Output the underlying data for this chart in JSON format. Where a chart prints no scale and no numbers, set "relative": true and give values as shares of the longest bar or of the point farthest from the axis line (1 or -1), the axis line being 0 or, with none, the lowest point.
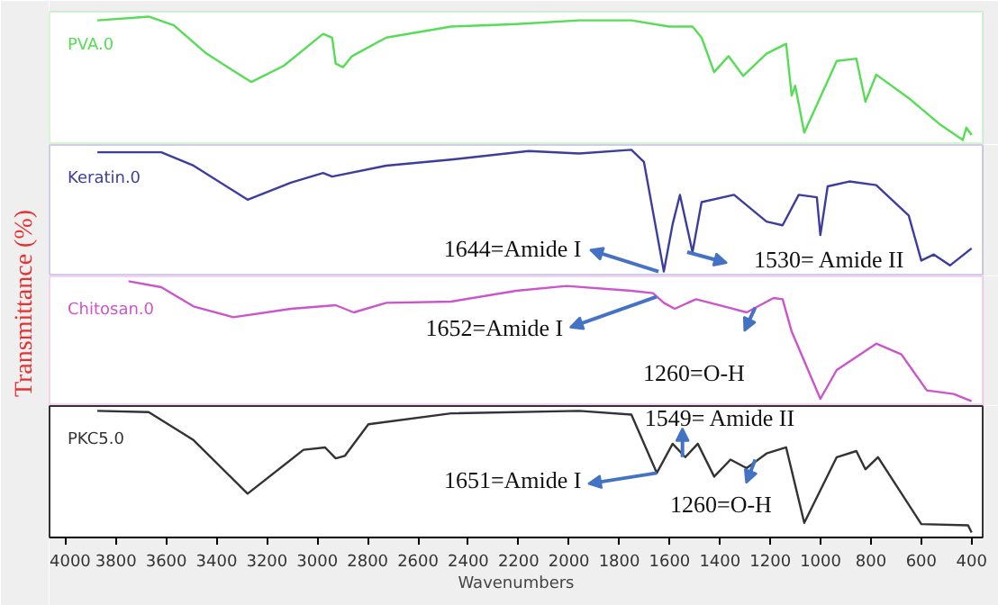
{
  "chart_data": [
    {
      "type": "line",
      "relative": true,
      "tick_labels": false,
      "xlim": [
        4064,
        356
      ],
      "x": [
        3874,
        3670,
        3570,
        3440,
        3263,
        3134,
        2977,
        2941,
        2927,
        2898,
        2862,
        2726,
        2468,
        2210,
        1960,
        1752,
        1602,
        1509,
        1473,
        1423,
        1366,
        1308,
        1215,
        1137,
        1115,
        1101,
        1065,
        936,
        858,
        822,
        779,
        650,
        528,
        435,
        421,
        400
      ],
      "series": [
        {
          "name": "PVA.0",
          "color": "#55dd55",
          "values": [
            0.97,
            1.0,
            0.93,
            0.7,
            0.47,
            0.6,
            0.86,
            0.83,
            0.62,
            0.59,
            0.68,
            0.83,
            0.92,
            0.94,
            0.97,
            0.97,
            0.92,
            0.92,
            0.83,
            0.55,
            0.68,
            0.52,
            0.7,
            0.78,
            0.36,
            0.44,
            0.06,
            0.64,
            0.66,
            0.31,
            0.53,
            0.34,
            0.13,
            0.0,
            0.1,
            0.04
          ]
        }
      ]
    },
    {
      "type": "line",
      "relative": true,
      "tick_labels": false,
      "xlim": [
        4064,
        356
      ],
      "ylabel": "Transmittance (%)",
      "x": [
        3874,
        3620,
        3492,
        3277,
        3105,
        2977,
        2941,
        2726,
        2468,
        2160,
        1960,
        1752,
        1702,
        1623,
        1588,
        1559,
        1509,
        1473,
        1344,
        1215,
        1151,
        1087,
        1015,
        1001,
        972,
        886,
        779,
        650,
        600,
        550,
        486,
        400
      ],
      "series": [
        {
          "name": "Keratin.0",
          "color": "#3d3d9e",
          "values": [
            0.98,
            0.98,
            0.87,
            0.59,
            0.73,
            0.81,
            0.78,
            0.87,
            0.92,
            0.99,
            0.97,
            1.0,
            0.9,
            0.0,
            0.39,
            0.63,
            0.16,
            0.57,
            0.63,
            0.41,
            0.38,
            0.63,
            0.61,
            0.3,
            0.7,
            0.74,
            0.71,
            0.46,
            0.09,
            0.14,
            0.05,
            0.19
          ]
        }
      ],
      "annotations": [
        {
          "text": "1644=Amide I",
          "x": 1644,
          "y": 0.0
        },
        {
          "text": "1530= Amide II",
          "x": 1530,
          "y": 0.16
        }
      ]
    },
    {
      "type": "line",
      "relative": true,
      "tick_labels": false,
      "xlim": [
        4064,
        356
      ],
      "x": [
        3750,
        3620,
        3492,
        3334,
        3105,
        2927,
        2855,
        2726,
        2468,
        2210,
        2010,
        1752,
        1666,
        1623,
        1580,
        1495,
        1366,
        1294,
        1187,
        1151,
        1115,
        1001,
        936,
        779,
        679,
        578,
        471,
        400
      ],
      "series": [
        {
          "name": "Chitosan.0",
          "color": "#cc55cc",
          "values": [
            1.0,
            0.95,
            0.79,
            0.7,
            0.77,
            0.8,
            0.74,
            0.82,
            0.83,
            0.92,
            0.96,
            0.92,
            0.9,
            0.82,
            0.77,
            0.85,
            0.78,
            0.74,
            0.86,
            0.85,
            0.58,
            0.02,
            0.26,
            0.48,
            0.39,
            0.09,
            0.06,
            0.0
          ]
        }
      ],
      "annotations": [
        {
          "text": "1652=Amide I",
          "x": 1652,
          "y": 0.87
        },
        {
          "text": "1260=O-H",
          "x": 1260,
          "y": 0.78
        }
      ]
    },
    {
      "type": "line",
      "relative": true,
      "tick_labels": "x",
      "xlim": [
        4064,
        356
      ],
      "xlabel": "Wavenumbers",
      "xticks": [
        4000,
        3800,
        3600,
        3400,
        3200,
        3000,
        2800,
        2600,
        2400,
        2200,
        2000,
        1800,
        1600,
        1400,
        1200,
        1000,
        800,
        600,
        400
      ],
      "x": [
        3874,
        3670,
        3492,
        3277,
        3055,
        2969,
        2927,
        2891,
        2797,
        2468,
        1960,
        1752,
        1651,
        1588,
        1538,
        1488,
        1423,
        1358,
        1294,
        1215,
        1137,
        1065,
        936,
        858,
        822,
        772,
        600,
        414,
        400
      ],
      "series": [
        {
          "name": "PKC5.0",
          "color": "#333333",
          "values": [
            1.0,
            0.99,
            0.76,
            0.32,
            0.68,
            0.7,
            0.61,
            0.63,
            0.89,
            0.98,
            1.0,
            0.97,
            0.49,
            0.73,
            0.62,
            0.73,
            0.46,
            0.6,
            0.53,
            0.65,
            0.7,
            0.08,
            0.62,
            0.67,
            0.52,
            0.62,
            0.07,
            0.06,
            0.0
          ]
        }
      ],
      "annotations": [
        {
          "text": "1549= Amide II",
          "x": 1549,
          "y": 0.62
        },
        {
          "text": "1651=Amide I",
          "x": 1651,
          "y": 0.49
        },
        {
          "text": "1260=O-H",
          "x": 1260,
          "y": 0.6
        }
      ]
    }
  ]
}
